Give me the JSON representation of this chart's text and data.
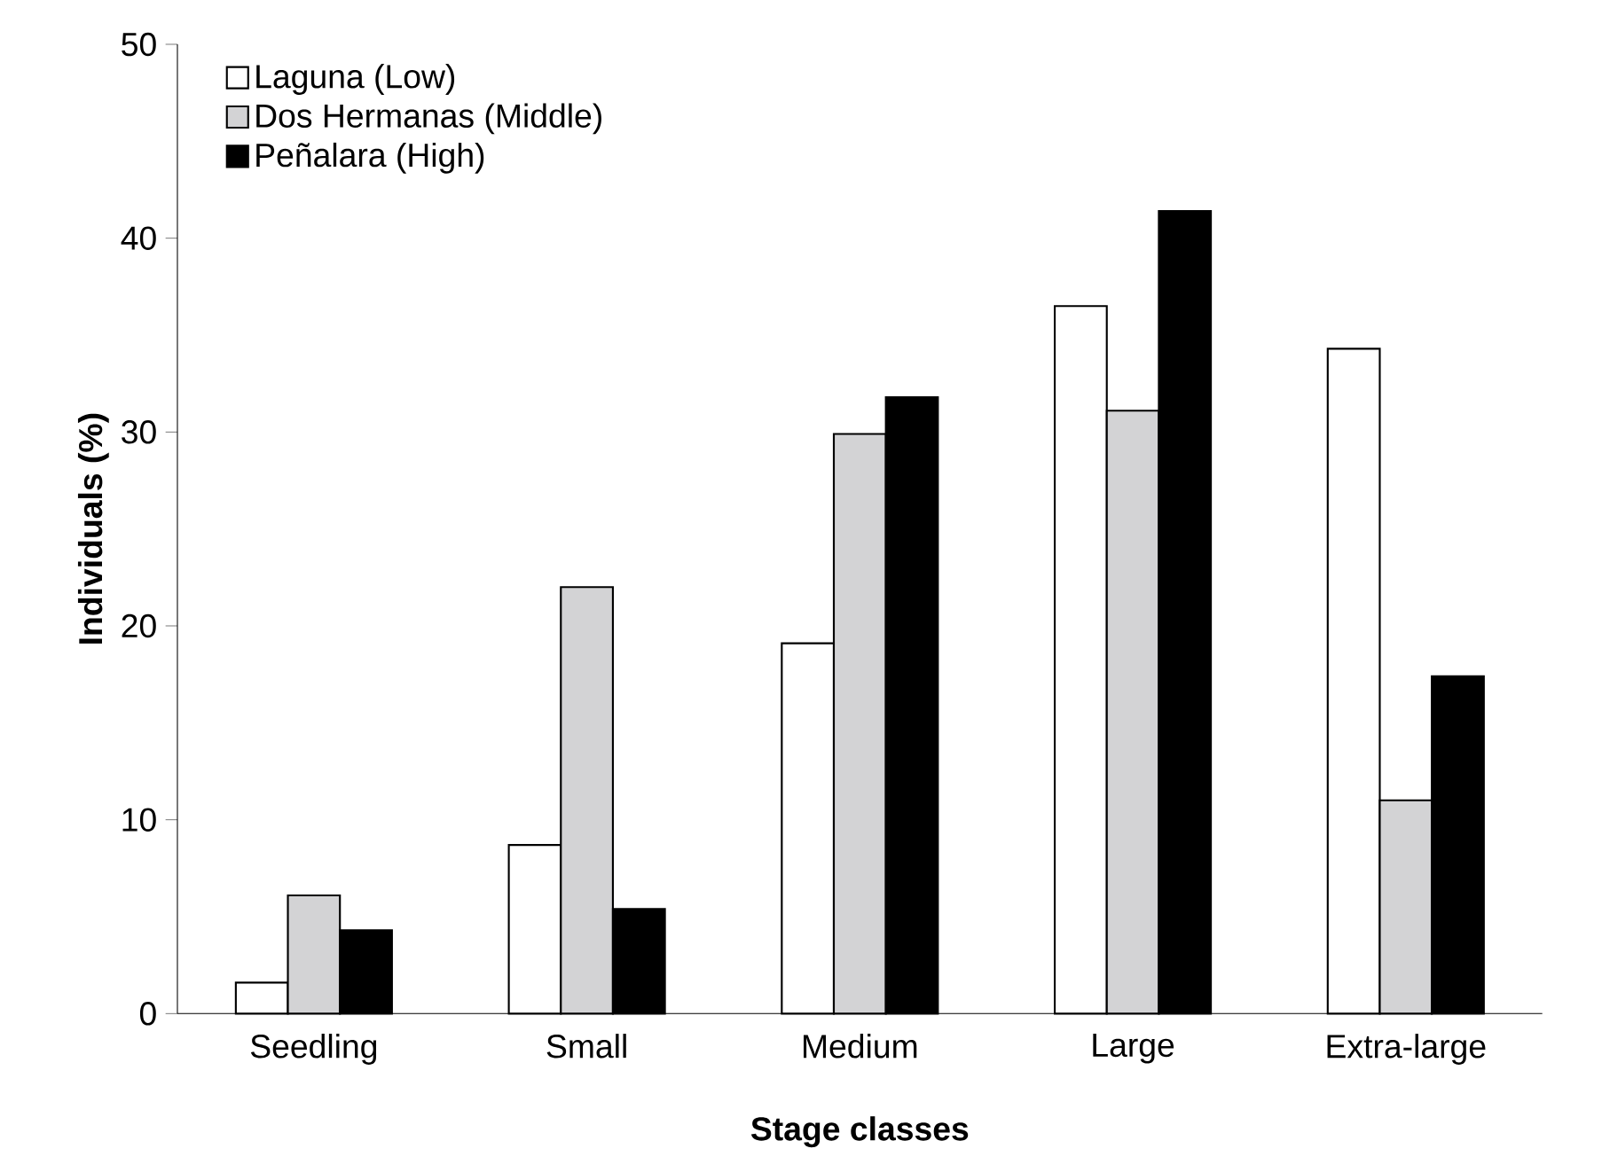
{
  "chart_data": {
    "type": "bar",
    "xlabel": "Stage classes",
    "ylabel": "Individuals (%)",
    "categories": [
      "Seedling",
      "Small",
      "Medium",
      "Large",
      "Extra-large"
    ],
    "series": [
      {
        "name": "Laguna (Low)",
        "color": "#ffffff",
        "values": [
          1.6,
          8.7,
          19.1,
          36.5,
          34.3
        ]
      },
      {
        "name": "Dos Hermanas (Middle)",
        "color": "#d3d3d5",
        "values": [
          6.1,
          22.0,
          29.9,
          31.1,
          11.0
        ]
      },
      {
        "name": "Peñalara (High)",
        "color": "#000000",
        "values": [
          4.3,
          5.4,
          31.8,
          41.4,
          17.4
        ]
      }
    ],
    "ylim": [
      0,
      50
    ],
    "yticks": [
      0,
      10,
      20,
      30,
      40,
      50
    ],
    "grid": false,
    "legend": "top left"
  }
}
